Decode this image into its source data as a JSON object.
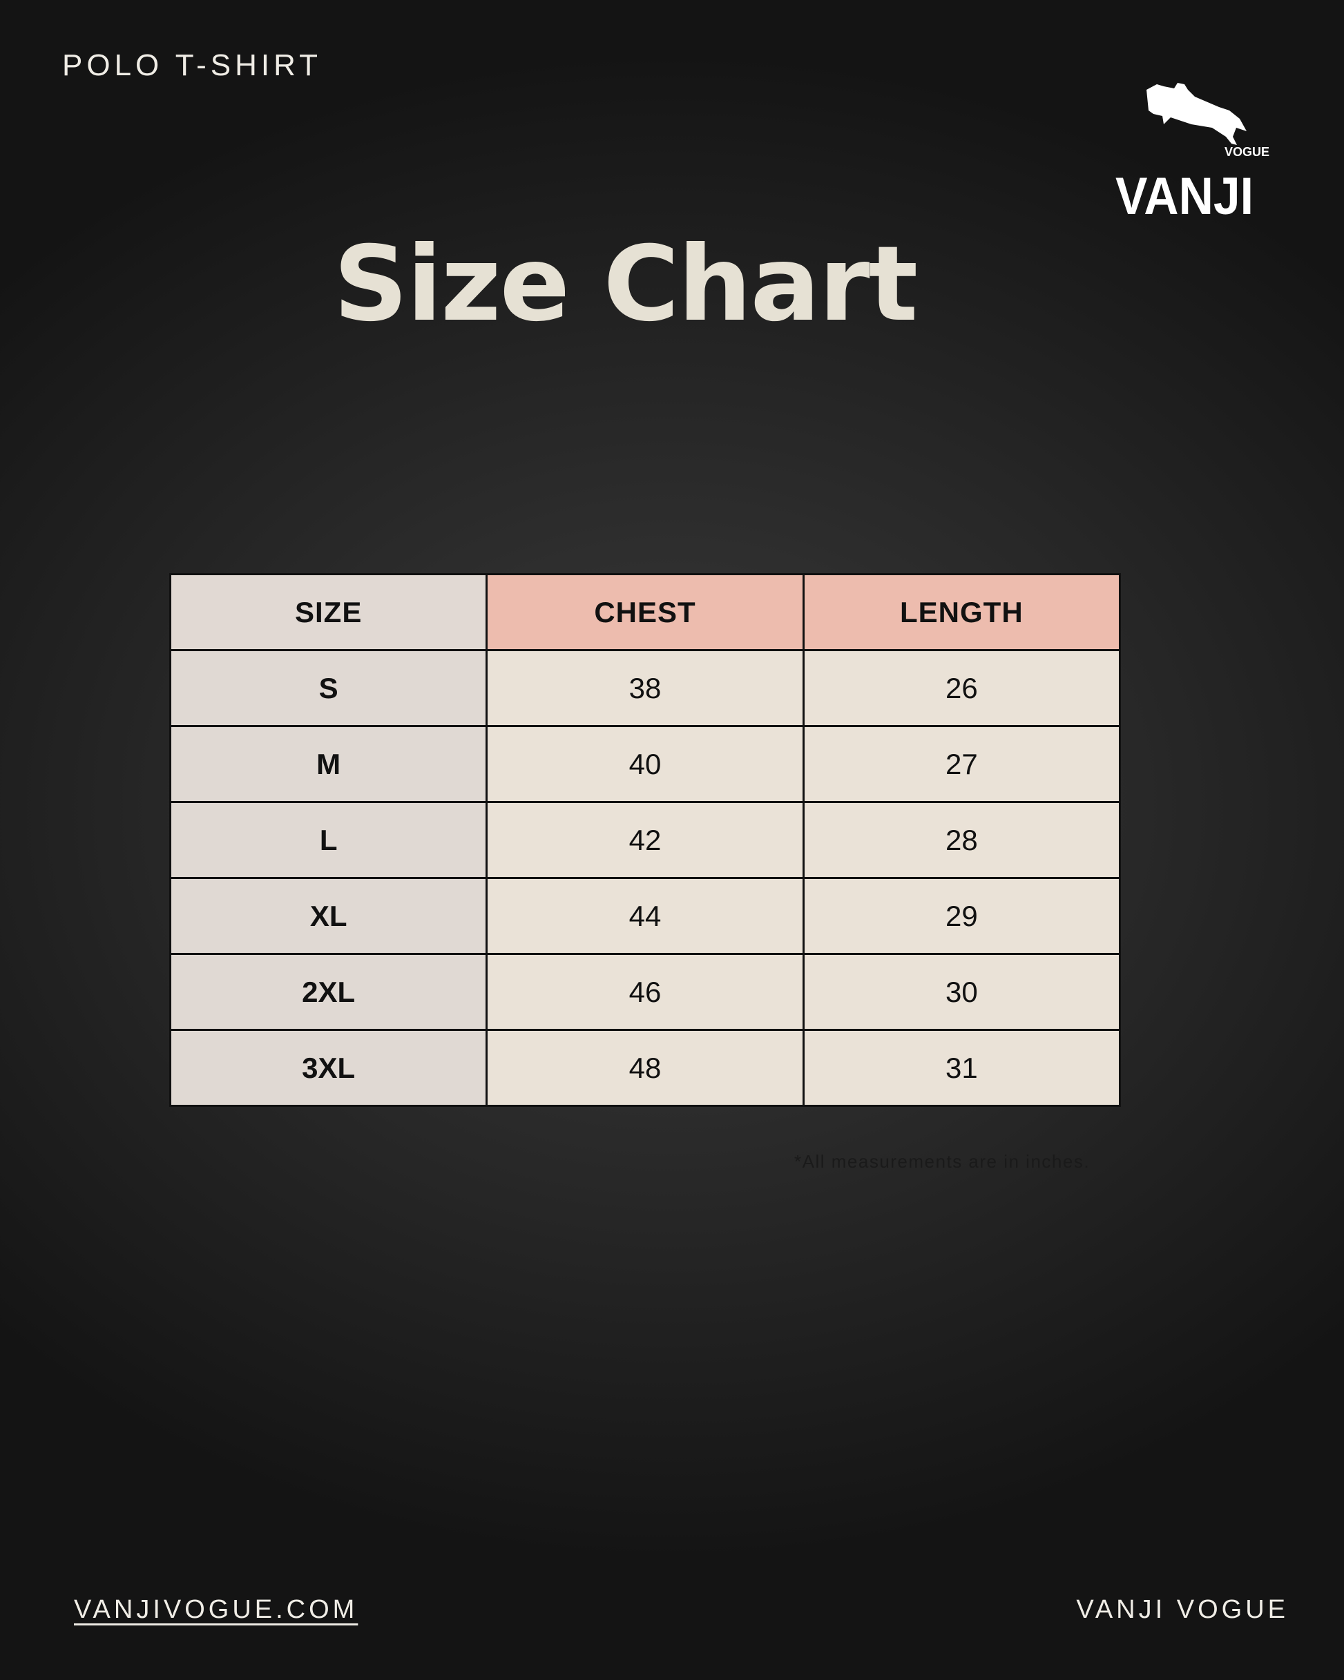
{
  "header": {
    "product": "POLO T-SHIRT",
    "title": "Size Chart"
  },
  "logo": {
    "brand": "VANJI",
    "sub": "VOGUE"
  },
  "table": {
    "columns": [
      "SIZE",
      "CHEST",
      "LENGTH"
    ],
    "rows": [
      {
        "size": "S",
        "chest": "38",
        "length": "26"
      },
      {
        "size": "M",
        "chest": "40",
        "length": "27"
      },
      {
        "size": "L",
        "chest": "42",
        "length": "28"
      },
      {
        "size": "XL",
        "chest": "44",
        "length": "29"
      },
      {
        "size": "2XL",
        "chest": "46",
        "length": "30"
      },
      {
        "size": "3XL",
        "chest": "48",
        "length": "31"
      }
    ]
  },
  "note": "*All measurements are in inches.",
  "footer": {
    "website": "VANJIVOGUE.COM",
    "brand": "VANJI VOGUE"
  },
  "colors": {
    "header_size": "#e1d9d3",
    "header_measure": "#edbcae",
    "cell": "#eae2d7",
    "title": "#e6e1d4"
  }
}
